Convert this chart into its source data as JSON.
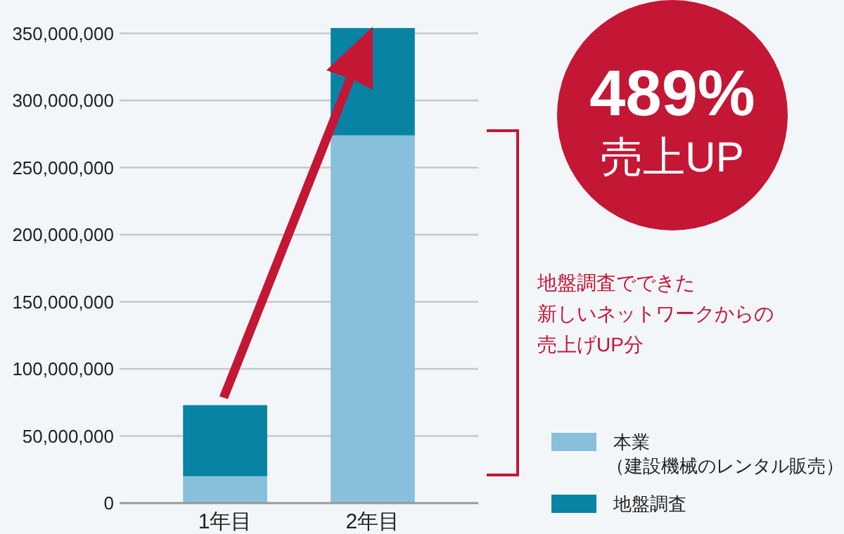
{
  "chart_data": {
    "type": "bar",
    "stacked": true,
    "categories": [
      "1年目",
      "2年目"
    ],
    "series": [
      {
        "name": "本業（建設機械のレンタル販売）",
        "color": "#88c0dc",
        "values": [
          20000000,
          274000000
        ]
      },
      {
        "name": "地盤調査",
        "color": "#0883a3",
        "values": [
          53000000,
          80000000
        ]
      }
    ],
    "ylim": [
      0,
      355000000
    ],
    "yticks": [
      {
        "value": 0,
        "label": "0"
      },
      {
        "value": 50000000,
        "label": "50,000,000"
      },
      {
        "value": 100000000,
        "label": "100,000,000"
      },
      {
        "value": 150000000,
        "label": "150,000,000"
      },
      {
        "value": 200000000,
        "label": "200,000,000"
      },
      {
        "value": 250000000,
        "label": "250,000,000"
      },
      {
        "value": 300000000,
        "label": "300,000,000"
      },
      {
        "value": 350000000,
        "label": "350,000,000"
      }
    ],
    "grid": "y",
    "legend": "bottom right",
    "annotations": [
      "489%",
      "売上UP",
      "地盤調査でできた",
      "新しいネットワークからの",
      "売上げUP分"
    ]
  }
}
